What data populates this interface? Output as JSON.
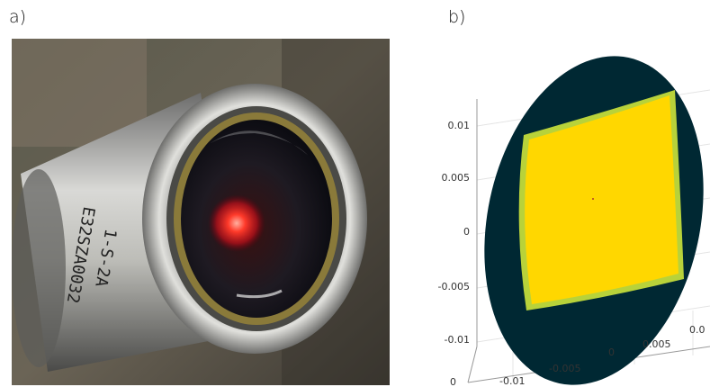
{
  "panels": {
    "a": {
      "label": "a)"
    },
    "b": {
      "label": "b)"
    }
  },
  "photo": {
    "engraving_line1": "E32SZA0032",
    "engraving_line2": "1-S-2A"
  },
  "plot": {
    "y_ticks": [
      "0.01",
      "0.005",
      "0",
      "-0.005",
      "-0.01"
    ],
    "x_ticks": [
      "-0.01",
      "-0.005",
      "0",
      "0.005",
      "0.0"
    ],
    "z_tick": "0",
    "colors": {
      "disk": "#002833",
      "fill": "#ffd700",
      "fill_edge": "#b8d23a",
      "axis": "#999999"
    }
  }
}
